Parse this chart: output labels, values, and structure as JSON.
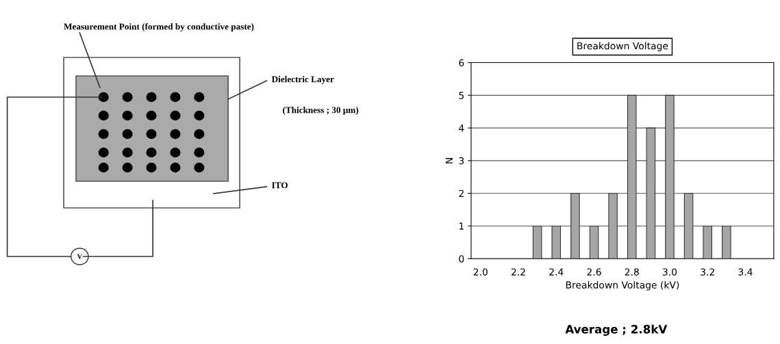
{
  "chart_data": [
    {
      "type": "other",
      "annotations": [
        "Measurement Point (formed by conductive paste)",
        "Dielectric Layer",
        "(Thickness ; 30 μm)",
        "ITO",
        "V"
      ]
    },
    {
      "type": "bar",
      "title": "Breakdown Voltage",
      "xlabel": "Breakdown Voltage (kV)",
      "ylabel": "N",
      "categories": [
        "2.0",
        null,
        "2.2",
        null,
        "2.4",
        null,
        "2.6",
        null,
        "2.8",
        null,
        "3.0",
        null,
        "3.2",
        null,
        "3.4",
        null
      ],
      "values": [
        0,
        0,
        0,
        1,
        1,
        2,
        1,
        2,
        5,
        4,
        5,
        2,
        1,
        1,
        0,
        0
      ],
      "color": "#a6a6a6",
      "ylim": [
        0,
        6
      ],
      "yticks": [
        0,
        1,
        2,
        3,
        4,
        5,
        6
      ],
      "grid": "y",
      "legend": false,
      "annotations": [
        "Average ; 2.8kV"
      ]
    }
  ]
}
